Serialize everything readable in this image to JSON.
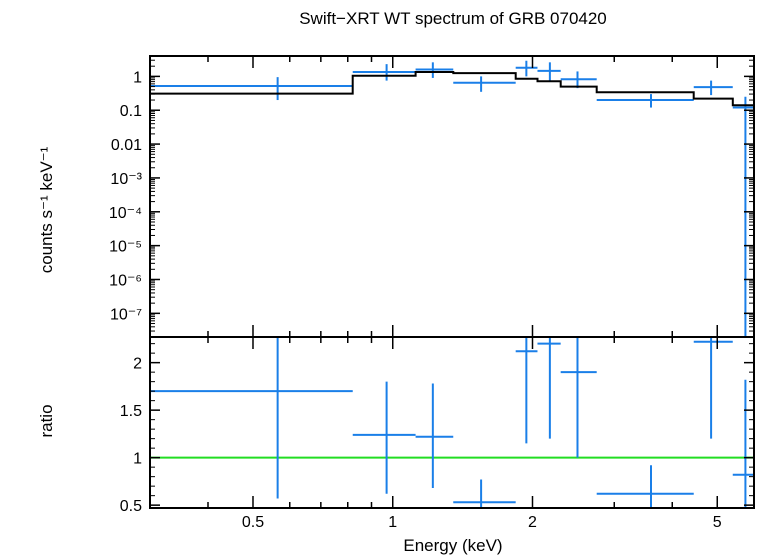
{
  "chart_data": {
    "type": "scatter",
    "title": "Swift−XRT WT spectrum of GRB 070420",
    "xlabel": "Energy (keV)",
    "xscale": "log",
    "xlim": [
      0.3,
      6.0
    ],
    "xticks": [
      {
        "v": 0.5,
        "label": "0.5"
      },
      {
        "v": 1,
        "label": "1"
      },
      {
        "v": 2,
        "label": "2"
      },
      {
        "v": 5,
        "label": "5"
      }
    ],
    "panels": [
      {
        "name": "spectrum",
        "ylabel": "counts s⁻¹ keV⁻¹",
        "yscale": "log",
        "ylim": [
          2e-08,
          4
        ],
        "yticks": [
          {
            "v": 1,
            "label": "1"
          },
          {
            "v": 0.1,
            "label": "0.1"
          },
          {
            "v": 0.01,
            "label": "0.01"
          },
          {
            "v": 0.001,
            "label": "10⁻³"
          },
          {
            "v": 0.0001,
            "label": "10⁻⁴"
          },
          {
            "v": 1e-05,
            "label": "10⁻⁵"
          },
          {
            "v": 1e-06,
            "label": "10⁻⁶"
          },
          {
            "v": 1e-07,
            "label": "10⁻⁷"
          }
        ],
        "series": [
          {
            "color": "#1a7fe8",
            "kind": "errorbars",
            "points": [
              {
                "x": 0.565,
                "xlo": 0.3,
                "xhi": 0.82,
                "y": 0.52,
                "ylo": 0.2,
                "yhi": 0.95
              },
              {
                "x": 0.97,
                "xlo": 0.82,
                "xhi": 1.12,
                "y": 1.35,
                "ylo": 0.75,
                "yhi": 2.3
              },
              {
                "x": 1.22,
                "xlo": 1.12,
                "xhi": 1.35,
                "y": 1.6,
                "ylo": 0.9,
                "yhi": 2.6
              },
              {
                "x": 1.55,
                "xlo": 1.35,
                "xhi": 1.84,
                "y": 0.65,
                "ylo": 0.35,
                "yhi": 1.0
              },
              {
                "x": 1.94,
                "xlo": 1.84,
                "xhi": 2.05,
                "y": 1.8,
                "ylo": 1.0,
                "yhi": 2.9
              },
              {
                "x": 2.18,
                "xlo": 2.05,
                "xhi": 2.3,
                "y": 1.45,
                "ylo": 0.7,
                "yhi": 2.6
              },
              {
                "x": 2.5,
                "xlo": 2.3,
                "xhi": 2.75,
                "y": 0.82,
                "ylo": 0.45,
                "yhi": 1.4
              },
              {
                "x": 3.6,
                "xlo": 2.75,
                "xhi": 4.45,
                "y": 0.2,
                "ylo": 0.12,
                "yhi": 0.3
              },
              {
                "x": 4.85,
                "xlo": 4.45,
                "xhi": 5.4,
                "y": 0.48,
                "ylo": 0.28,
                "yhi": 0.75
              },
              {
                "x": 5.75,
                "xlo": 5.4,
                "xhi": 6.0,
                "y": 0.12,
                "ylo": 2e-08,
                "yhi": 0.25
              }
            ]
          },
          {
            "color": "#000000",
            "kind": "step-model",
            "edges": [
              0.3,
              0.82,
              1.12,
              1.35,
              1.84,
              2.05,
              2.3,
              2.75,
              4.45,
              5.4,
              6.0
            ],
            "values": [
              0.31,
              1.05,
              1.35,
              1.25,
              0.85,
              0.72,
              0.5,
              0.34,
              0.22,
              0.14
            ]
          }
        ]
      },
      {
        "name": "ratio",
        "ylabel": "ratio",
        "yscale": "linear",
        "ylim": [
          0.47,
          2.27
        ],
        "yticks": [
          {
            "v": 0.5,
            "label": "0.5"
          },
          {
            "v": 1,
            "label": "1"
          },
          {
            "v": 1.5,
            "label": "1.5"
          },
          {
            "v": 2,
            "label": "2"
          }
        ],
        "reference_line": {
          "y": 1,
          "color": "#22dd22"
        },
        "series": [
          {
            "color": "#1a7fe8",
            "kind": "errorbars",
            "points": [
              {
                "x": 0.565,
                "xlo": 0.3,
                "xhi": 0.82,
                "y": 1.7,
                "ylo": 0.57,
                "yhi": 2.27
              },
              {
                "x": 0.97,
                "xlo": 0.82,
                "xhi": 1.12,
                "y": 1.24,
                "ylo": 0.62,
                "yhi": 1.8
              },
              {
                "x": 1.22,
                "xlo": 1.12,
                "xhi": 1.35,
                "y": 1.22,
                "ylo": 0.68,
                "yhi": 1.78
              },
              {
                "x": 1.55,
                "xlo": 1.35,
                "xhi": 1.84,
                "y": 0.53,
                "ylo": 0.47,
                "yhi": 0.77
              },
              {
                "x": 1.94,
                "xlo": 1.84,
                "xhi": 2.05,
                "y": 2.12,
                "ylo": 1.15,
                "yhi": 2.27
              },
              {
                "x": 2.18,
                "xlo": 2.05,
                "xhi": 2.3,
                "y": 2.2,
                "ylo": 1.2,
                "yhi": 2.27
              },
              {
                "x": 2.5,
                "xlo": 2.3,
                "xhi": 2.75,
                "y": 1.9,
                "ylo": 1.0,
                "yhi": 2.27
              },
              {
                "x": 3.6,
                "xlo": 2.75,
                "xhi": 4.45,
                "y": 0.62,
                "ylo": 0.47,
                "yhi": 0.92
              },
              {
                "x": 4.85,
                "xlo": 4.45,
                "xhi": 5.4,
                "y": 2.22,
                "ylo": 1.2,
                "yhi": 2.27
              },
              {
                "x": 5.75,
                "xlo": 5.4,
                "xhi": 6.0,
                "y": 0.82,
                "ylo": 0.47,
                "yhi": 1.82
              }
            ]
          }
        ]
      }
    ]
  }
}
